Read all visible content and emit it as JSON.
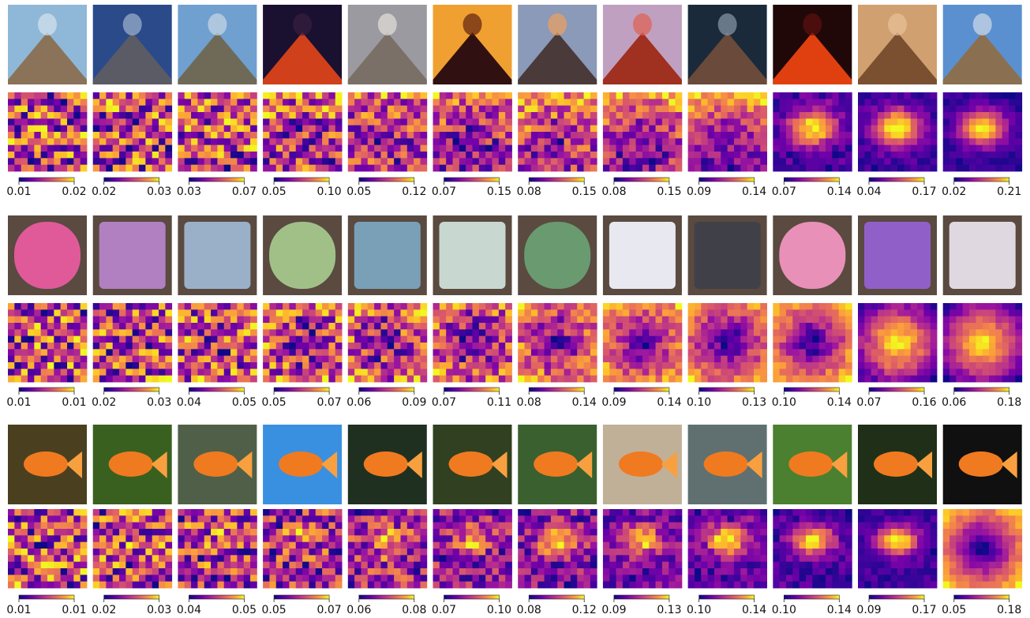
{
  "figure": {
    "groups": [
      {
        "colorbars": [
          [
            "0.01",
            "0.02"
          ],
          [
            "0.02",
            "0.03"
          ],
          [
            "0.03",
            "0.07"
          ],
          [
            "0.05",
            "0.10"
          ],
          [
            "0.05",
            "0.12"
          ],
          [
            "0.07",
            "0.15"
          ],
          [
            "0.08",
            "0.15"
          ],
          [
            "0.08",
            "0.15"
          ],
          [
            "0.09",
            "0.14"
          ],
          [
            "0.07",
            "0.14"
          ],
          [
            "0.04",
            "0.17"
          ],
          [
            "0.02",
            "0.21"
          ]
        ]
      },
      {
        "colorbars": [
          [
            "0.01",
            "0.01"
          ],
          [
            "0.02",
            "0.03"
          ],
          [
            "0.04",
            "0.05"
          ],
          [
            "0.05",
            "0.07"
          ],
          [
            "0.06",
            "0.09"
          ],
          [
            "0.07",
            "0.11"
          ],
          [
            "0.08",
            "0.14"
          ],
          [
            "0.09",
            "0.14"
          ],
          [
            "0.10",
            "0.13"
          ],
          [
            "0.10",
            "0.14"
          ],
          [
            "0.07",
            "0.16"
          ],
          [
            "0.06",
            "0.18"
          ]
        ]
      },
      {
        "colorbars": [
          [
            "0.01",
            "0.01"
          ],
          [
            "0.02",
            "0.03"
          ],
          [
            "0.04",
            "0.05"
          ],
          [
            "0.05",
            "0.07"
          ],
          [
            "0.06",
            "0.08"
          ],
          [
            "0.07",
            "0.10"
          ],
          [
            "0.08",
            "0.12"
          ],
          [
            "0.09",
            "0.13"
          ],
          [
            "0.10",
            "0.14"
          ],
          [
            "0.10",
            "0.14"
          ],
          [
            "0.09",
            "0.17"
          ],
          [
            "0.05",
            "0.18"
          ]
        ]
      }
    ]
  }
}
